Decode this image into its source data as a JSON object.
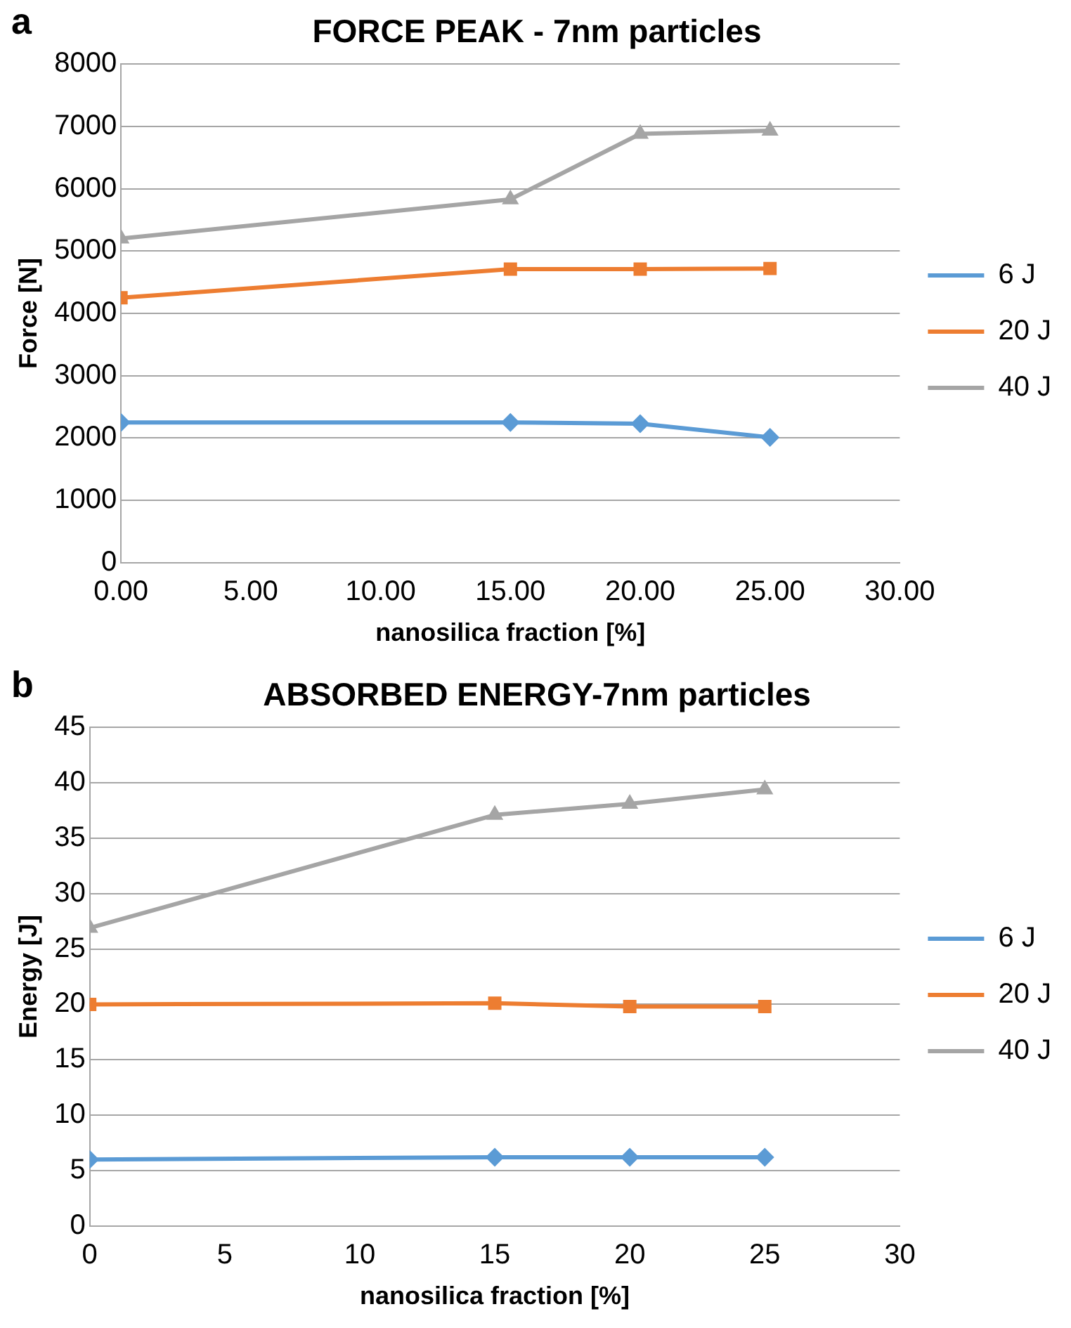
{
  "chart_data": [
    {
      "type": "line",
      "title": "FORCE PEAK - 7nm particles",
      "xlabel": "nanosilica fraction [%]",
      "ylabel": "Force [N]",
      "annotations": [
        "a"
      ],
      "x": [
        0,
        15,
        20,
        25
      ],
      "series": [
        {
          "name": "6 J",
          "color": "#5b9bd5",
          "marker": "diamond",
          "values": [
            2250,
            2250,
            2230,
            2010
          ]
        },
        {
          "name": "20 J",
          "color": "#ed7d31",
          "marker": "square",
          "values": [
            4250,
            4710,
            4710,
            4720
          ]
        },
        {
          "name": "40 J",
          "color": "#a5a5a5",
          "marker": "triangle",
          "values": [
            5200,
            5830,
            6880,
            6930
          ]
        }
      ],
      "xlim": [
        0,
        30
      ],
      "xticks": [
        {
          "value": 0,
          "label": "0.00"
        },
        {
          "value": 5,
          "label": "5.00"
        },
        {
          "value": 10,
          "label": "10.00"
        },
        {
          "value": 15,
          "label": "15.00"
        },
        {
          "value": 20,
          "label": "20.00"
        },
        {
          "value": 25,
          "label": "25.00"
        },
        {
          "value": 30,
          "label": "30.00"
        }
      ],
      "ylim": [
        0,
        8000
      ],
      "yticks": [
        0,
        1000,
        2000,
        3000,
        4000,
        5000,
        6000,
        7000,
        8000
      ],
      "grid": "y",
      "legend": "right",
      "line_style": "solid"
    },
    {
      "type": "line",
      "title": "ABSORBED ENERGY-7nm particles",
      "xlabel": "nanosilica fraction [%]",
      "ylabel": "Energy [J]",
      "annotations": [
        "b"
      ],
      "x": [
        0,
        15,
        20,
        25
      ],
      "series": [
        {
          "name": "6 J",
          "color": "#5b9bd5",
          "marker": "diamond",
          "values": [
            6.0,
            6.2,
            6.2,
            6.2
          ]
        },
        {
          "name": "20 J",
          "color": "#ed7d31",
          "marker": "square",
          "values": [
            20.0,
            20.1,
            19.8,
            19.8
          ]
        },
        {
          "name": "40 J",
          "color": "#a5a5a5",
          "marker": "triangle",
          "values": [
            26.9,
            37.1,
            38.1,
            39.4
          ]
        }
      ],
      "xlim": [
        0,
        30
      ],
      "xticks": [
        0,
        5,
        10,
        15,
        20,
        25,
        30
      ],
      "ylim": [
        0,
        45
      ],
      "yticks": [
        0,
        5,
        10,
        15,
        20,
        25,
        30,
        35,
        40,
        45
      ],
      "grid": "y",
      "legend": "right",
      "line_style": "solid"
    }
  ]
}
